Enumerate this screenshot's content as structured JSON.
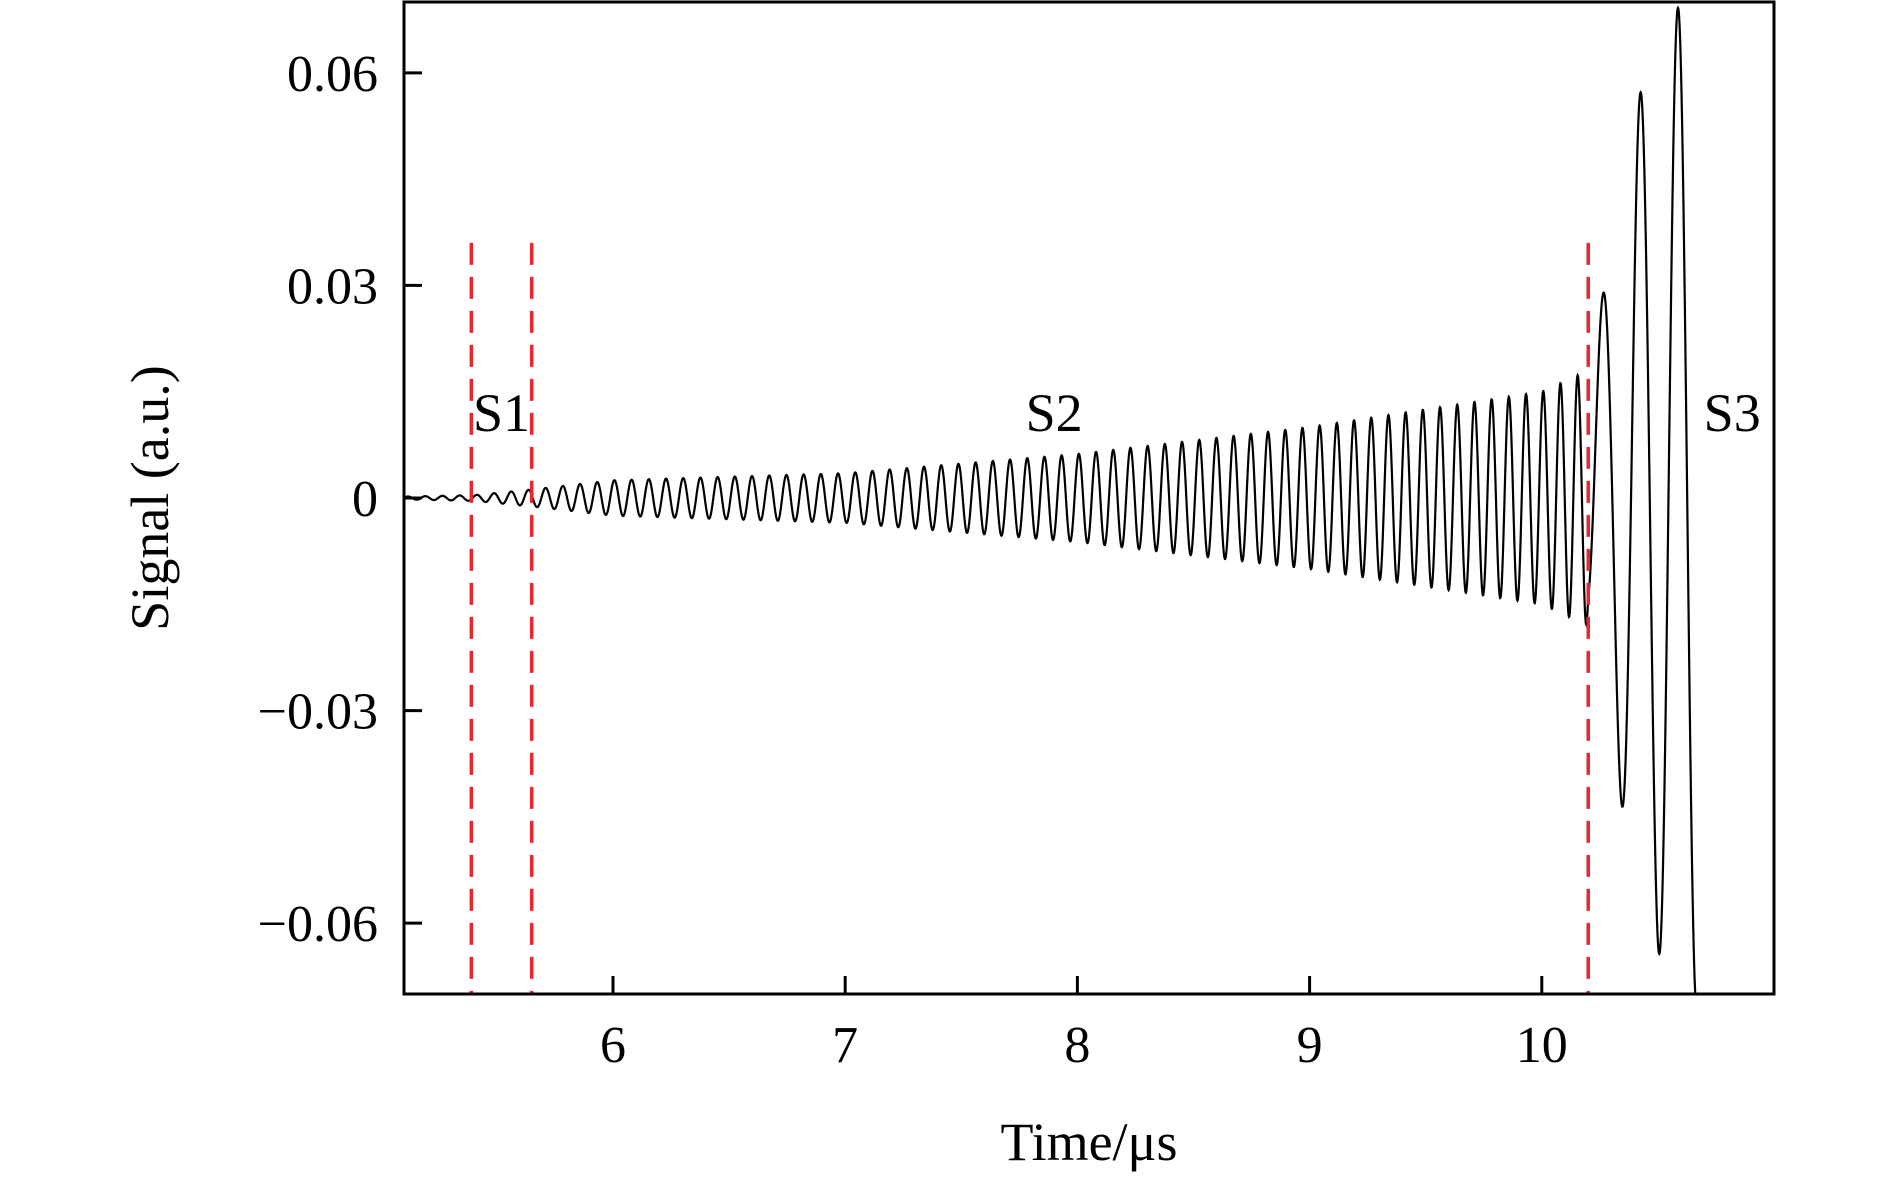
{
  "chart_data": {
    "type": "line",
    "title": "",
    "xlabel": "Time/μs",
    "ylabel": "Signal (a.u.)",
    "xlim": [
      5.1,
      11.0
    ],
    "ylim": [
      -0.07,
      0.07
    ],
    "x_ticks": [
      6,
      7,
      8,
      9,
      10
    ],
    "x_tick_labels": [
      "6",
      "7",
      "8",
      "9",
      "10"
    ],
    "y_ticks": [
      0.06,
      0.03,
      0,
      -0.03,
      -0.06
    ],
    "y_tick_labels": [
      "0.06",
      "0.03",
      "0",
      "−0.03",
      "−0.06"
    ],
    "grid": false,
    "legend": "none",
    "colors": {
      "signal": "#000000",
      "boundary": "#e8262e"
    },
    "series": [
      {
        "color": "#000000",
        "description_points": [
          {
            "t": 5.1,
            "amp": 0.0002
          },
          {
            "t": 5.4,
            "amp": 0.0004
          },
          {
            "t": 5.65,
            "amp": 0.0012
          },
          {
            "t": 6.0,
            "amp": 0.0025
          },
          {
            "t": 7.0,
            "amp": 0.0035
          },
          {
            "t": 8.0,
            "amp": 0.0062
          },
          {
            "t": 9.0,
            "amp": 0.01
          },
          {
            "t": 10.0,
            "amp": 0.015
          },
          {
            "t": 10.2,
            "amp": 0.018
          },
          {
            "t": 10.23,
            "amp": 0.024
          },
          {
            "t": 10.3,
            "amp": 0.034
          },
          {
            "t": 10.4,
            "amp": 0.055
          },
          {
            "t": 10.5,
            "amp": 0.064
          },
          {
            "t": 10.6,
            "amp": 0.07
          },
          {
            "t": 10.67,
            "amp": 0.072
          }
        ]
      }
    ],
    "vlines": [
      {
        "x": 5.39,
        "ymax": 0.036
      },
      {
        "x": 5.65,
        "ymax": 0.036
      },
      {
        "x": 10.2,
        "ymax": 0.036
      }
    ],
    "annotations": [
      {
        "text": "S1",
        "x": 5.52,
        "y": 0.012
      },
      {
        "text": "S2",
        "x": 7.9,
        "y": 0.012
      },
      {
        "text": "S3",
        "x": 10.82,
        "y": 0.012
      }
    ]
  }
}
